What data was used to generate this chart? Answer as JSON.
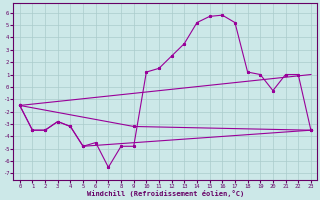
{
  "xlabel": "Windchill (Refroidissement éolien,°C)",
  "bg_color": "#cce8e8",
  "line_color": "#990099",
  "grid_color": "#aacccc",
  "xlim": [
    -0.5,
    23.5
  ],
  "ylim": [
    -7.5,
    6.8
  ],
  "xticks": [
    0,
    1,
    2,
    3,
    4,
    5,
    6,
    7,
    8,
    9,
    10,
    11,
    12,
    13,
    14,
    15,
    16,
    17,
    18,
    19,
    20,
    21,
    22,
    23
  ],
  "yticks": [
    -7,
    -6,
    -5,
    -4,
    -3,
    -2,
    -1,
    0,
    1,
    2,
    3,
    4,
    5,
    6
  ],
  "series1": [
    [
      0,
      -1.5
    ],
    [
      1,
      -3.5
    ],
    [
      2,
      -3.5
    ],
    [
      3,
      -2.8
    ],
    [
      4,
      -3.2
    ],
    [
      5,
      -4.8
    ],
    [
      6,
      -4.5
    ],
    [
      7,
      -6.5
    ],
    [
      8,
      -4.8
    ],
    [
      9,
      -4.8
    ],
    [
      10,
      1.2
    ],
    [
      11,
      1.5
    ],
    [
      12,
      2.5
    ],
    [
      13,
      3.5
    ],
    [
      14,
      5.2
    ],
    [
      15,
      5.7
    ],
    [
      16,
      5.8
    ],
    [
      17,
      5.2
    ],
    [
      18,
      1.2
    ],
    [
      19,
      1.0
    ],
    [
      20,
      -0.3
    ],
    [
      21,
      1.0
    ],
    [
      22,
      1.0
    ],
    [
      23,
      -3.5
    ]
  ],
  "series2": [
    [
      0,
      -1.5
    ],
    [
      1,
      -3.5
    ],
    [
      2,
      -3.5
    ],
    [
      3,
      -2.8
    ],
    [
      4,
      -3.2
    ],
    [
      5,
      -4.8
    ],
    [
      23,
      -3.5
    ]
  ],
  "series3": [
    [
      0,
      -1.5
    ],
    [
      23,
      1.0
    ]
  ],
  "series4": [
    [
      0,
      -1.5
    ],
    [
      9,
      -3.2
    ],
    [
      23,
      -3.5
    ]
  ]
}
